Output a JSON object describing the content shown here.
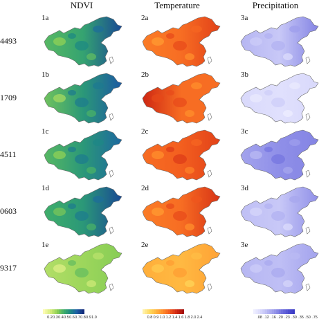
{
  "columns": [
    {
      "title": "NDVI",
      "ramp": [
        "#fbfbb2",
        "#d4ec7a",
        "#8fd054",
        "#3fae6a",
        "#1e8a82",
        "#1d5fa6",
        "#122b7a"
      ],
      "ticks": [
        "0.2",
        "0.3",
        "0.4",
        "0.5",
        "0.6",
        "0.7",
        "0.8",
        "0.9",
        "1.0"
      ]
    },
    {
      "title": "Temperature",
      "ramp": [
        "#fff1a8",
        "#ffd75a",
        "#ffb23c",
        "#ff8a2a",
        "#f25a1e",
        "#d22a14",
        "#a50f0a"
      ],
      "ticks": [
        "0.8",
        "0.9",
        "1.0",
        "1.2",
        "1.4",
        "1.6",
        "1.8",
        "2.0",
        "2.4"
      ]
    },
    {
      "title": "Precipitation",
      "ramp": [
        "#eeeeff",
        "#d7d7fb",
        "#b9b9f3",
        "#9a9aeb",
        "#7676e0",
        "#5656d4",
        "#3a3ac4"
      ],
      "ticks": [
        ".08",
        ".12",
        ".16",
        ".20",
        ".23",
        ".30",
        ".35",
        ".50",
        ".75"
      ]
    }
  ],
  "rows": [
    {
      "label": "4493",
      "panels": [
        "1a",
        "2a",
        "3a"
      ]
    },
    {
      "label": "1709",
      "panels": [
        "1b",
        "2b",
        "3b"
      ]
    },
    {
      "label": "4511",
      "panels": [
        "1c",
        "2c",
        "3c"
      ]
    },
    {
      "label": "0603",
      "panels": [
        "1d",
        "2d",
        "3d"
      ]
    },
    {
      "label": "9317",
      "panels": [
        "1e",
        "2e",
        "3e"
      ]
    }
  ],
  "map_values": {
    "ndvi": [
      [
        0.45,
        0.55,
        0.9
      ],
      [
        0.4,
        0.6,
        0.85
      ],
      [
        0.45,
        0.6,
        0.8
      ],
      [
        0.5,
        0.6,
        0.9
      ],
      [
        0.25,
        0.3,
        0.35
      ]
    ],
    "temp": [
      [
        0.55,
        0.6,
        0.75
      ],
      [
        0.85,
        0.6,
        0.6
      ],
      [
        0.6,
        0.65,
        0.75
      ],
      [
        0.55,
        0.6,
        0.8
      ],
      [
        0.35,
        0.3,
        0.4
      ]
    ],
    "precip": [
      [
        0.35,
        0.25,
        0.6
      ],
      [
        0.15,
        0.1,
        0.15
      ],
      [
        0.45,
        0.55,
        0.6
      ],
      [
        0.3,
        0.25,
        0.55
      ],
      [
        0.35,
        0.3,
        0.45
      ]
    ]
  }
}
